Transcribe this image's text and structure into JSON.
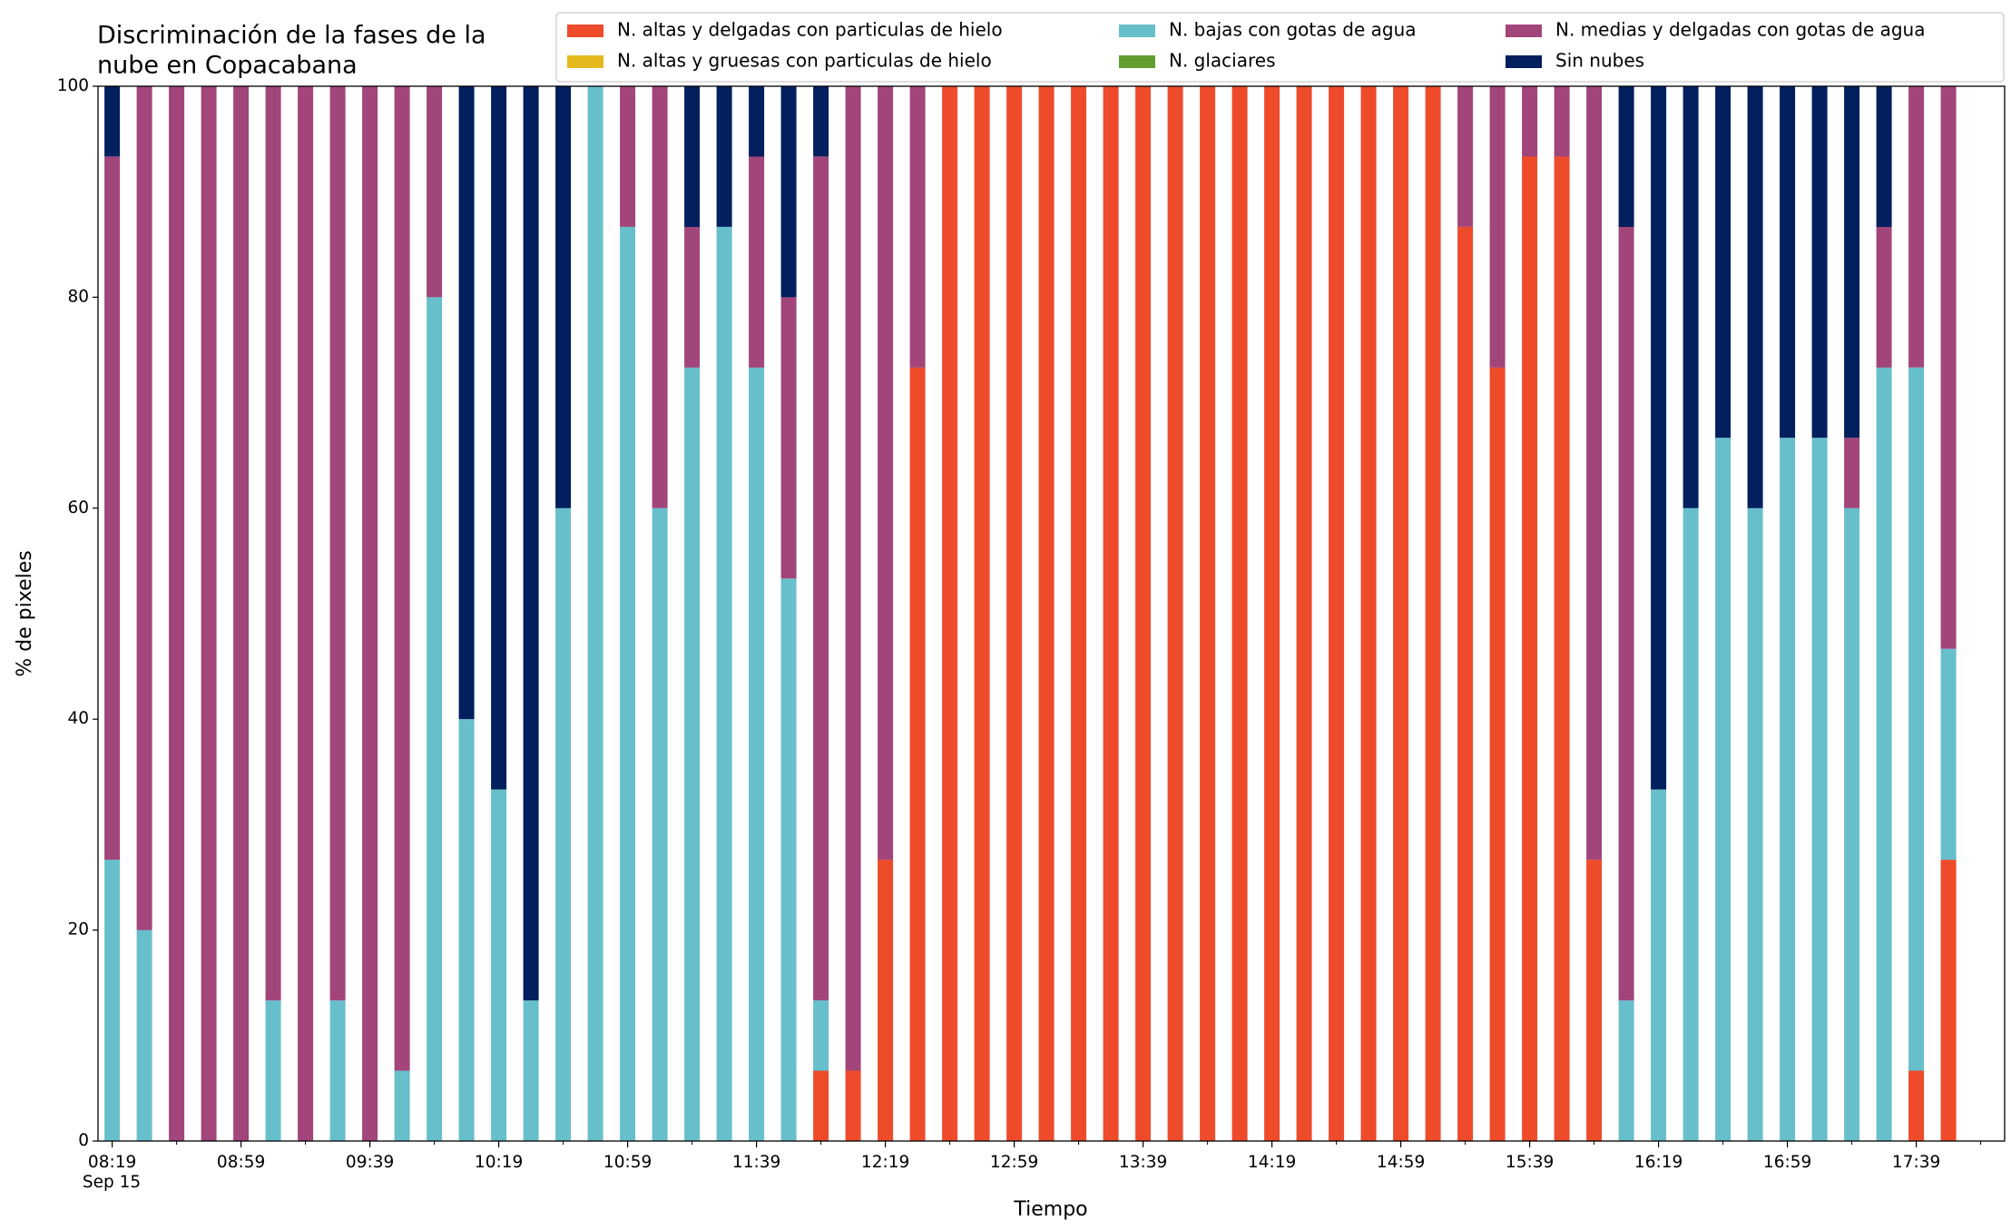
{
  "chart_data": {
    "type": "stacked_bar",
    "title": [
      "Discriminación de la fases de la",
      "nube en Copacabana"
    ],
    "x_label": "Tiempo",
    "y_label": "% de pixeles",
    "x_sublabel": "Sep 15",
    "categories": [
      "08:19",
      null,
      null,
      null,
      "08:59",
      null,
      null,
      null,
      "09:39",
      null,
      null,
      null,
      "10:19",
      null,
      null,
      null,
      "10:59",
      null,
      null,
      null,
      "11:39",
      null,
      null,
      null,
      "12:19",
      null,
      null,
      null,
      "12:59",
      null,
      null,
      null,
      "13:39",
      null,
      null,
      null,
      "14:19",
      null,
      null,
      null,
      "14:59",
      null,
      null,
      null,
      "15:39",
      null,
      null,
      null,
      "16:19",
      null,
      null,
      null,
      "16:59",
      null,
      null,
      null,
      "17:39",
      null
    ],
    "series": [
      {
        "name": "N. altas y delgadas con particulas de hielo",
        "color": "#ee4b2b",
        "values": [
          0,
          0,
          0,
          0,
          0,
          0,
          0,
          0,
          0,
          0,
          0,
          0,
          0,
          0,
          0,
          0,
          0,
          0,
          0,
          0,
          0,
          0,
          6.67,
          6.67,
          26.67,
          73.33,
          100,
          100,
          100,
          100,
          100,
          100,
          100,
          100,
          100,
          100,
          100,
          100,
          100,
          100,
          100,
          100,
          86.67,
          73.33,
          93.33,
          93.33,
          26.67,
          0,
          0,
          0,
          0,
          0,
          0,
          0,
          0,
          0,
          6.67,
          26.67
        ]
      },
      {
        "name": "N. altas y gruesas con particulas de hielo",
        "color": "#e6b91e",
        "values": [
          0,
          0,
          0,
          0,
          0,
          0,
          0,
          0,
          0,
          0,
          0,
          0,
          0,
          0,
          0,
          0,
          0,
          0,
          0,
          0,
          0,
          0,
          0,
          0,
          0,
          0,
          0,
          0,
          0,
          0,
          0,
          0,
          0,
          0,
          0,
          0,
          0,
          0,
          0,
          0,
          0,
          0,
          0,
          0,
          0,
          0,
          0,
          0,
          0,
          0,
          0,
          0,
          0,
          0,
          0,
          0,
          0,
          0
        ]
      },
      {
        "name": "N. bajas con gotas de agua",
        "color": "#67bfcc",
        "values": [
          26.67,
          20,
          0,
          0,
          0,
          13.33,
          0,
          13.33,
          0,
          6.67,
          80,
          40,
          33.33,
          13.33,
          60,
          100,
          86.67,
          60,
          73.33,
          86.67,
          73.33,
          53.33,
          6.67,
          0,
          0,
          0,
          0,
          0,
          0,
          0,
          0,
          0,
          0,
          0,
          0,
          0,
          0,
          0,
          0,
          0,
          0,
          0,
          0,
          0,
          0,
          0,
          0,
          13.33,
          33.33,
          60,
          66.67,
          60,
          66.67,
          66.67,
          60,
          73.33,
          66.67,
          20
        ]
      },
      {
        "name": "N. glaciares",
        "color": "#5f9e2f",
        "values": [
          0,
          0,
          0,
          0,
          0,
          0,
          0,
          0,
          0,
          0,
          0,
          0,
          0,
          0,
          0,
          0,
          0,
          0,
          0,
          0,
          0,
          0,
          0,
          0,
          0,
          0,
          0,
          0,
          0,
          0,
          0,
          0,
          0,
          0,
          0,
          0,
          0,
          0,
          0,
          0,
          0,
          0,
          0,
          0,
          0,
          0,
          0,
          0,
          0,
          0,
          0,
          0,
          0,
          0,
          0,
          0,
          0,
          0
        ]
      },
      {
        "name": "N. medias y delgadas con gotas de agua",
        "color": "#a2457a",
        "values": [
          66.67,
          80,
          100,
          100,
          100,
          86.67,
          100,
          86.67,
          100,
          93.33,
          20,
          0,
          0,
          0,
          0,
          0,
          13.33,
          40,
          13.33,
          0,
          20,
          26.67,
          80,
          93.33,
          73.33,
          26.67,
          0,
          0,
          0,
          0,
          0,
          0,
          0,
          0,
          0,
          0,
          0,
          0,
          0,
          0,
          0,
          0,
          13.33,
          26.67,
          6.67,
          6.67,
          73.33,
          73.33,
          0,
          0,
          0,
          0,
          0,
          0,
          6.67,
          13.33,
          26.67,
          53.33
        ]
      },
      {
        "name": "Sin nubes",
        "color": "#021f5e",
        "values": [
          6.67,
          0,
          0,
          0,
          0,
          0,
          0,
          0,
          0,
          0,
          0,
          60,
          66.67,
          86.67,
          40,
          0,
          0,
          0,
          13.33,
          13.33,
          6.67,
          20,
          6.67,
          0,
          0,
          0,
          0,
          0,
          0,
          0,
          0,
          0,
          0,
          0,
          0,
          0,
          0,
          0,
          0,
          0,
          0,
          0,
          0,
          0,
          0,
          0,
          0,
          13.33,
          66.67,
          40,
          33.33,
          40,
          33.33,
          33.33,
          33.33,
          13.33,
          0,
          0
        ]
      }
    ],
    "ylim": [
      0,
      100
    ],
    "yticks": [
      0,
      20,
      40,
      60,
      80,
      100
    ]
  }
}
